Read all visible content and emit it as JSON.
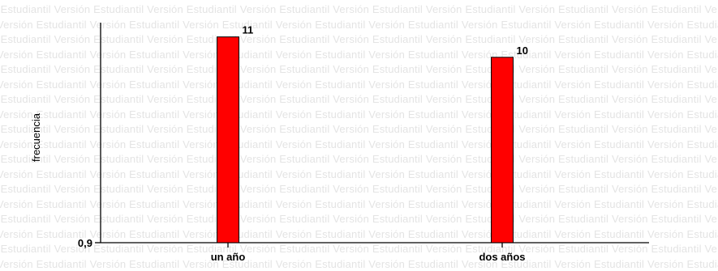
{
  "watermark": {
    "text": "Versión Estudiantil"
  },
  "chart_data": {
    "type": "bar",
    "categories": [
      "un año",
      "dos años"
    ],
    "values": [
      11,
      10
    ],
    "data_labels": [
      "11",
      "10"
    ],
    "ylabel": "frecuencia",
    "xlabel": "",
    "title": "",
    "y_tick_labels": [
      "0,9"
    ],
    "ylim": [
      0.9,
      11.7
    ],
    "bar_color": "#ff0000",
    "bar_edge_color": "#000000",
    "grid": false,
    "legend": "none"
  }
}
